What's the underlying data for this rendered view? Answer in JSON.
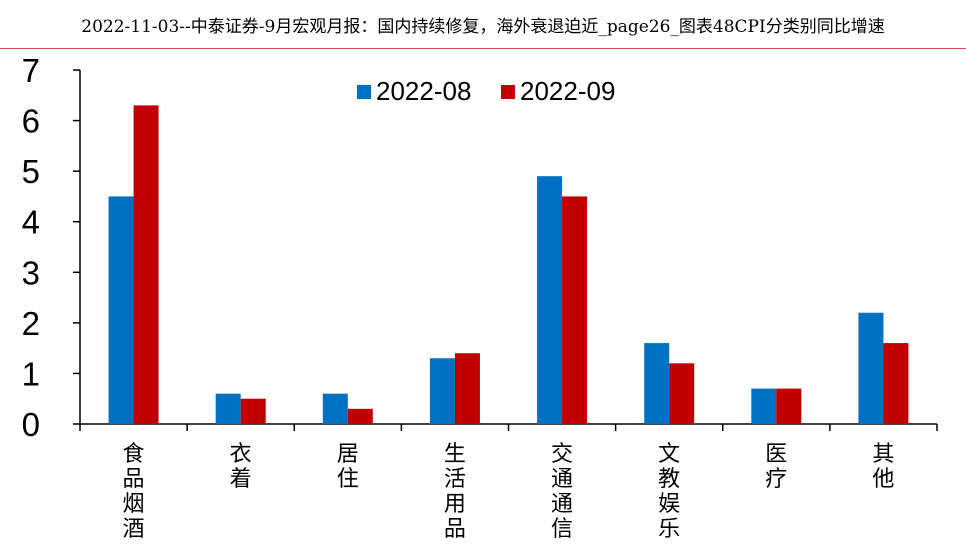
{
  "page": {
    "title": "2022-11-03--中泰证券-9月宏观月报：国内持续修复，海外衰退迫近_page26_图表48CPI分类别同比增速"
  },
  "colors": {
    "series_1": "#0070C0",
    "series_2": "#C00000",
    "axis": "#000000",
    "header_rule": "#d9534f"
  },
  "chart_data": {
    "type": "bar",
    "categories": [
      "食品烟酒",
      "衣着",
      "居住",
      "生活用品",
      "交通通信",
      "文教娱乐",
      "医疗",
      "其他"
    ],
    "series": [
      {
        "name": "2022-08",
        "values": [
          4.5,
          0.6,
          0.6,
          1.3,
          4.9,
          1.6,
          0.7,
          2.2
        ]
      },
      {
        "name": "2022-09",
        "values": [
          6.3,
          0.5,
          0.3,
          1.4,
          4.5,
          1.2,
          0.7,
          1.6
        ]
      }
    ],
    "yticks": [
      0,
      1,
      2,
      3,
      4,
      5,
      6,
      7
    ],
    "ylim": [
      0,
      7
    ],
    "grid": false,
    "legend": "top-center"
  }
}
